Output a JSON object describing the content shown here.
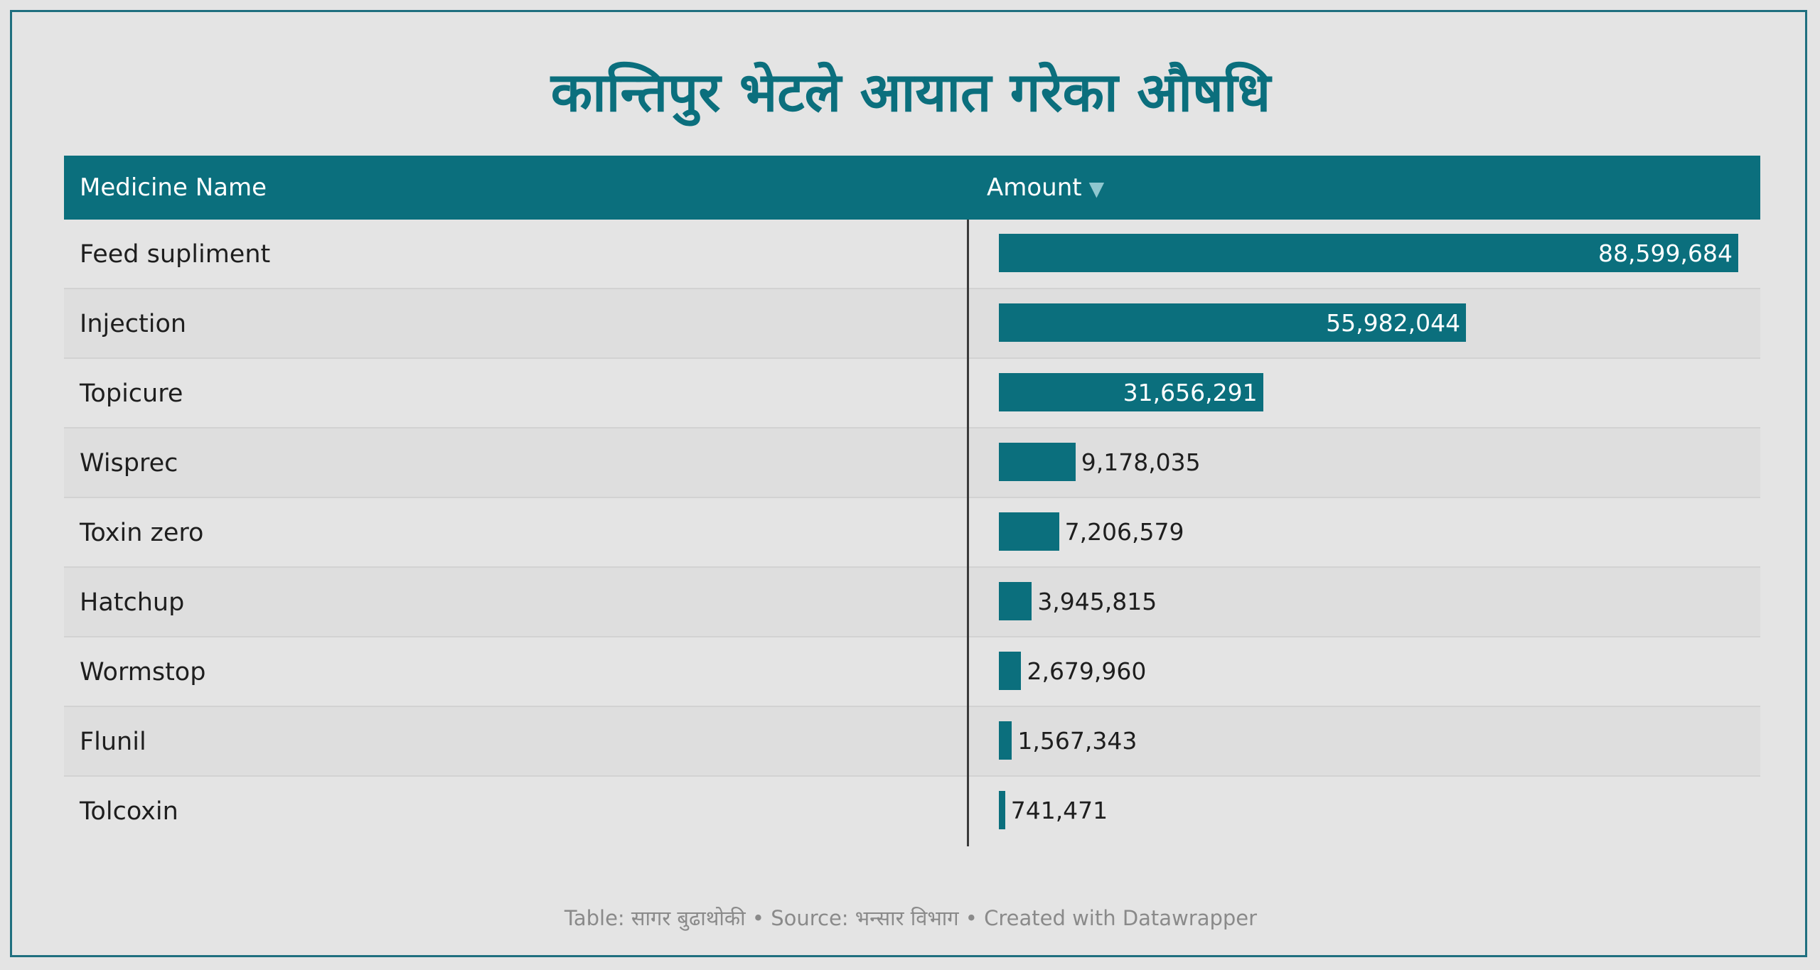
{
  "title": "कान्तिपुर भेटले आयात गरेका औषधि",
  "footer": "Table: सागर बुढाथोकी • Source: भन्सार विभाग • Created with Datawrapper",
  "colors": {
    "accent": "#0b6f7d",
    "background": "#e4e4e4"
  },
  "chart_data": {
    "type": "table",
    "columns": [
      "Medicine Name",
      "Amount"
    ],
    "sort_indicator": "▼",
    "categories": [
      "Feed supliment",
      "Injection",
      "Topicure",
      "Wisprec",
      "Toxin zero",
      "Hatchup",
      "Wormstop",
      "Flunil",
      "Tolcoxin"
    ],
    "values": [
      88599684,
      55982044,
      31656291,
      9178035,
      7206579,
      3945815,
      2679960,
      1567343,
      741471
    ],
    "value_labels": [
      "88,599,684",
      "55,982,044",
      "31,656,291",
      "9,178,035",
      "7,206,579",
      "3,945,815",
      "2,679,960",
      "1,567,343",
      "741,471"
    ],
    "xlim": [
      0,
      88599684
    ]
  }
}
